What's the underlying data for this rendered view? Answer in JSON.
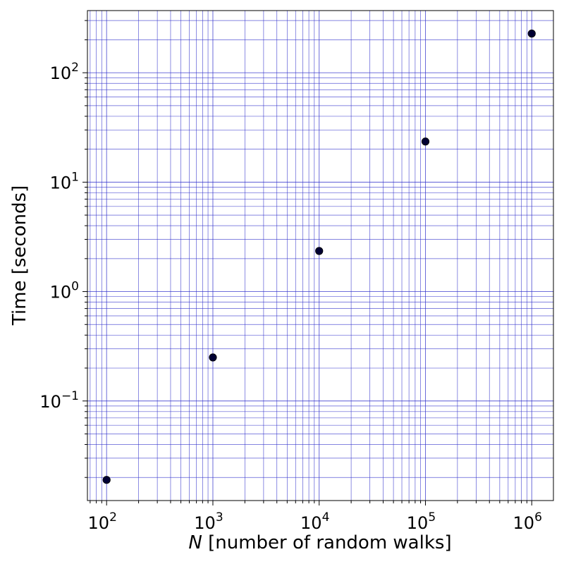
{
  "chart_data": {
    "type": "scatter",
    "scale": {
      "x": "log",
      "y": "log"
    },
    "xlabel": {
      "symbol": "N",
      "text": " [number of random walks]"
    },
    "ylabel": "Time [seconds]",
    "xlim": [
      66,
      1600000
    ],
    "ylim": [
      0.0123,
      370
    ],
    "grid": {
      "enabled": true,
      "which": "both",
      "color": "#3333cc"
    },
    "marker_color": "#000033",
    "x_ticks": [
      {
        "base": "10",
        "exp": "2",
        "value": 100
      },
      {
        "base": "10",
        "exp": "3",
        "value": 1000
      },
      {
        "base": "10",
        "exp": "4",
        "value": 10000
      },
      {
        "base": "10",
        "exp": "5",
        "value": 100000
      },
      {
        "base": "10",
        "exp": "6",
        "value": 1000000
      }
    ],
    "y_ticks": [
      {
        "base": "10",
        "exp": "−1",
        "value": 0.1
      },
      {
        "base": "10",
        "exp": "0",
        "value": 1
      },
      {
        "base": "10",
        "exp": "1",
        "value": 10
      },
      {
        "base": "10",
        "exp": "2",
        "value": 100
      }
    ],
    "points": [
      {
        "x": 100,
        "y": 0.019
      },
      {
        "x": 1000,
        "y": 0.25
      },
      {
        "x": 10000,
        "y": 2.35
      },
      {
        "x": 100000,
        "y": 23.5
      },
      {
        "x": 1000000,
        "y": 228
      }
    ]
  }
}
